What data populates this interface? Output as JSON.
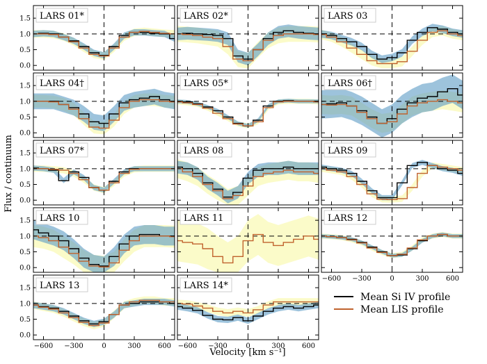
{
  "chart_data": {
    "type": "line",
    "title": "",
    "xlabel": "Velocity [km s⁻¹]",
    "ylabel": "Flux / continuum",
    "xlim": [
      -700,
      700
    ],
    "ylim": [
      -0.15,
      1.9
    ],
    "x_ticks": [
      -600,
      -300,
      0,
      300,
      600
    ],
    "x_tick_labels": [
      "−600",
      "−300",
      "0",
      "300",
      "600"
    ],
    "y_ticks": [
      0.0,
      0.5,
      1.0,
      1.5
    ],
    "y_tick_labels": [
      "0.0",
      "0.5",
      "1.0",
      "1.5"
    ],
    "reference_lines": {
      "flux": 1.0,
      "velocity": 0
    },
    "legend": [
      {
        "name": "Mean Si IV profile",
        "color": "#000000"
      },
      {
        "name": "Mean LIS profile",
        "color": "#c0622d"
      }
    ],
    "band_colors": {
      "si_iv": "#5b9bc4",
      "lis": "#fafac0",
      "overlap": "#8fbf9a"
    },
    "panel_x": [
      -700,
      -600,
      -500,
      -400,
      -300,
      -200,
      -100,
      0,
      100,
      200,
      300,
      400,
      500,
      600,
      700
    ],
    "panels": [
      {
        "name": "LARS 01*",
        "si": [
          1.0,
          1.02,
          1.0,
          0.9,
          0.78,
          0.6,
          0.4,
          0.32,
          0.6,
          0.95,
          1.05,
          1.05,
          1.02,
          1.0,
          0.85
        ],
        "si_err": 0.1,
        "lis": [
          1.0,
          1.0,
          0.98,
          0.9,
          0.75,
          0.55,
          0.35,
          0.3,
          0.55,
          0.9,
          1.05,
          1.08,
          1.05,
          1.02,
          1.0
        ],
        "lis_err": 0.12
      },
      {
        "name": "LARS 02*",
        "si": [
          1.0,
          1.02,
          1.0,
          0.98,
          0.95,
          0.85,
          0.3,
          0.2,
          0.5,
          0.85,
          1.05,
          1.1,
          1.05,
          1.02,
          1.0
        ],
        "si_err": 0.2,
        "lis": [
          1.0,
          0.98,
          0.95,
          0.9,
          0.85,
          0.6,
          0.2,
          0.15,
          0.5,
          0.8,
          0.95,
          1.0,
          1.0,
          1.0,
          0.98
        ],
        "lis_err": 0.25
      },
      {
        "name": "LARS 03",
        "si": [
          1.0,
          0.95,
          0.85,
          0.75,
          0.6,
          0.35,
          0.2,
          0.25,
          0.4,
          0.8,
          1.05,
          1.2,
          1.15,
          1.05,
          1.0
        ],
        "si_err": 0.12,
        "lis": [
          0.98,
          0.9,
          0.75,
          0.55,
          0.35,
          0.15,
          0.06,
          0.06,
          0.12,
          0.45,
          0.8,
          1.05,
          1.1,
          1.0,
          0.95
        ],
        "lis_err": 0.15
      },
      {
        "name": "LARS 04†",
        "si": [
          1.0,
          1.0,
          1.0,
          0.9,
          0.8,
          0.6,
          0.35,
          0.3,
          0.6,
          0.95,
          1.05,
          1.1,
          1.15,
          1.05,
          1.0
        ],
        "si_err": 0.25,
        "lis": [
          1.0,
          1.0,
          0.98,
          0.9,
          0.75,
          0.45,
          0.18,
          0.15,
          0.4,
          0.8,
          1.0,
          1.05,
          1.05,
          1.0,
          0.98
        ],
        "lis_err": 0.2
      },
      {
        "name": "LARS 05*",
        "si": [
          1.0,
          0.98,
          0.92,
          0.82,
          0.7,
          0.5,
          0.3,
          0.22,
          0.4,
          0.85,
          1.0,
          1.02,
          1.0,
          1.0,
          1.0
        ],
        "si_err": 0.06,
        "lis": [
          0.98,
          0.95,
          0.9,
          0.78,
          0.62,
          0.45,
          0.28,
          0.22,
          0.35,
          0.8,
          0.98,
          1.0,
          1.0,
          1.0,
          0.98
        ],
        "lis_err": 0.08
      },
      {
        "name": "LARS 06†",
        "si": [
          0.9,
          0.92,
          0.95,
          0.85,
          0.7,
          0.5,
          0.3,
          0.45,
          0.75,
          0.95,
          1.1,
          1.15,
          1.3,
          1.4,
          1.2
        ],
        "si_err": 0.45,
        "lis": [
          0.9,
          0.88,
          0.9,
          0.85,
          0.65,
          0.45,
          0.3,
          0.35,
          0.6,
          0.85,
          0.95,
          1.0,
          1.05,
          1.0,
          0.95
        ],
        "lis_err": 0.3
      },
      {
        "name": "LARS 07*",
        "si": [
          1.02,
          1.0,
          0.95,
          0.62,
          0.9,
          0.72,
          0.4,
          0.32,
          0.6,
          0.9,
          1.0,
          1.0,
          1.0,
          1.0,
          1.0
        ],
        "si_err": 0.08,
        "lis": [
          1.0,
          1.0,
          0.98,
          0.95,
          0.85,
          0.65,
          0.4,
          0.32,
          0.55,
          0.85,
          0.98,
          1.0,
          1.0,
          1.0,
          1.0
        ],
        "lis_err": 0.1
      },
      {
        "name": "LARS 08",
        "si": [
          1.05,
          1.0,
          0.85,
          0.55,
          0.35,
          0.1,
          0.25,
          0.7,
          0.95,
          1.0,
          1.0,
          1.05,
          1.0,
          1.0,
          1.0
        ],
        "si_err": 0.2,
        "lis": [
          1.0,
          0.9,
          0.75,
          0.5,
          0.3,
          0.05,
          0.15,
          0.45,
          0.75,
          0.85,
          0.9,
          0.95,
          0.9,
          0.9,
          0.85
        ],
        "lis_err": 0.3
      },
      {
        "name": "LARS 09",
        "si": [
          1.05,
          1.0,
          0.95,
          0.85,
          0.6,
          0.3,
          0.08,
          0.08,
          0.55,
          1.1,
          1.2,
          1.1,
          1.0,
          0.95,
          0.85
        ],
        "si_err": 0.08,
        "lis": [
          1.0,
          0.95,
          0.9,
          0.75,
          0.5,
          0.2,
          0.03,
          0.02,
          0.05,
          0.4,
          0.85,
          1.1,
          1.05,
          1.0,
          0.95
        ],
        "lis_err": 0.1
      },
      {
        "name": "LARS 10",
        "si": [
          1.2,
          1.1,
          1.0,
          0.85,
          0.6,
          0.3,
          0.1,
          0.05,
          0.35,
          0.75,
          1.0,
          1.05,
          1.05,
          1.0,
          1.0
        ],
        "si_err": 0.3,
        "lis": [
          1.0,
          0.95,
          0.85,
          0.65,
          0.45,
          0.2,
          0.05,
          0.02,
          0.15,
          0.55,
          0.85,
          1.0,
          1.0,
          1.0,
          0.98
        ],
        "lis_err": 0.35
      },
      {
        "name": "LARS 11",
        "si": null,
        "si_err": 0,
        "lis": [
          0.85,
          0.8,
          0.75,
          0.6,
          0.35,
          0.15,
          0.35,
          0.85,
          1.05,
          0.8,
          0.7,
          0.8,
          0.9,
          1.0,
          0.9
        ],
        "lis_err": 0.65
      },
      {
        "name": "LARS 12",
        "si": [
          1.0,
          0.98,
          0.95,
          0.9,
          0.8,
          0.65,
          0.5,
          0.38,
          0.4,
          0.6,
          0.85,
          1.0,
          1.05,
          1.0,
          1.0
        ],
        "si_err": 0.06,
        "lis": [
          1.0,
          0.98,
          0.95,
          0.88,
          0.78,
          0.62,
          0.48,
          0.38,
          0.42,
          0.62,
          0.88,
          1.0,
          1.05,
          1.0,
          1.0
        ],
        "lis_err": 0.08
      },
      {
        "name": "LARS 13",
        "si": [
          0.95,
          0.9,
          0.85,
          0.75,
          0.6,
          0.45,
          0.35,
          0.42,
          0.65,
          0.95,
          1.0,
          1.05,
          1.05,
          1.05,
          1.0
        ],
        "si_err": 0.1,
        "lis": [
          0.95,
          0.88,
          0.82,
          0.7,
          0.55,
          0.4,
          0.3,
          0.38,
          0.65,
          0.95,
          1.05,
          1.1,
          1.1,
          1.05,
          1.05
        ],
        "lis_err": 0.12
      },
      {
        "name": "LARS 14*",
        "si": [
          0.9,
          0.85,
          0.78,
          0.62,
          0.5,
          0.48,
          0.55,
          0.45,
          0.6,
          0.75,
          0.85,
          0.9,
          0.85,
          0.9,
          0.95
        ],
        "si_err": 0.1,
        "lis": [
          1.0,
          0.98,
          0.92,
          0.85,
          0.75,
          0.7,
          0.75,
          0.7,
          0.8,
          0.95,
          1.05,
          1.05,
          1.05,
          1.05,
          1.05
        ],
        "lis_err": 0.12
      }
    ]
  }
}
